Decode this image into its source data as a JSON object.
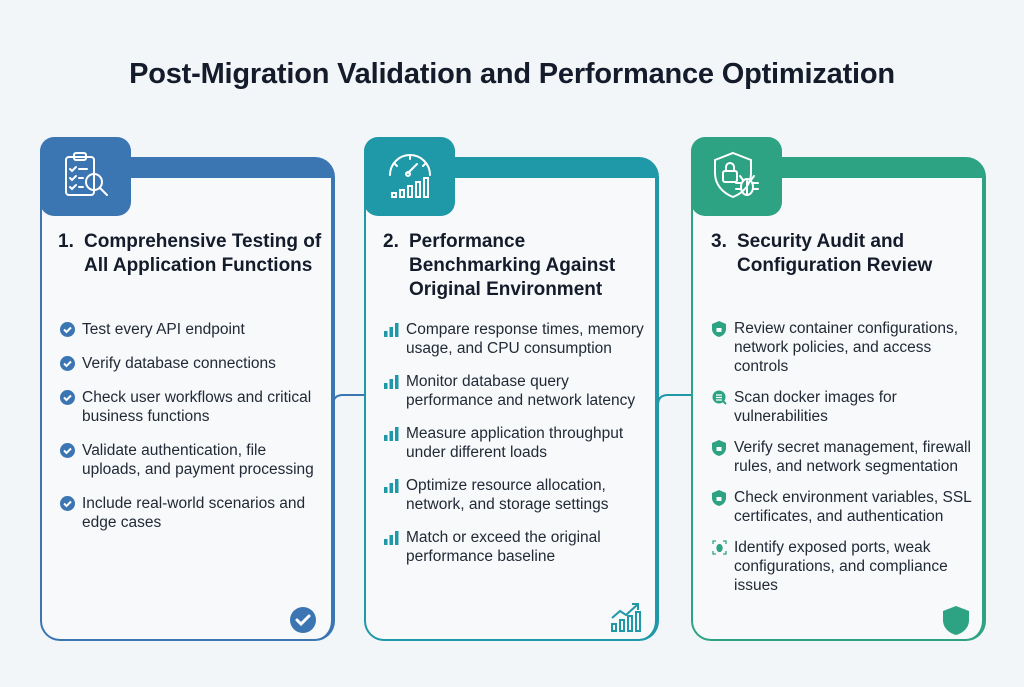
{
  "title": "Post-Migration Validation and Performance Optimization",
  "colors": {
    "step1": "#3b76b3",
    "step2": "#1f98a8",
    "step3": "#2ea383"
  },
  "steps": [
    {
      "number": "1.",
      "title": "Comprehensive Testing of All Application Functions",
      "icon": "clipboard-search-icon",
      "bullet_icon": "check-circle-icon",
      "corner_icon": "check-circle-icon",
      "items": [
        "Test every API endpoint",
        "Verify database connections",
        "Check user workflows and critical business functions",
        "Validate authentication, file uploads, and payment processing",
        "Include real-world scenarios and edge cases"
      ]
    },
    {
      "number": "2.",
      "title": "Performance Benchmarking Against Original Environment",
      "icon": "speedometer-icon",
      "bullet_icon": "bar-chart-icon",
      "corner_icon": "trend-up-chart-icon",
      "items": [
        "Compare response times, memory usage, and CPU consumption",
        "Monitor database query performance and network latency",
        "Measure application throughput under different loads",
        "Optimize resource allocation, network, and storage settings",
        "Match or exceed the original performance baseline"
      ]
    },
    {
      "number": "3.",
      "title": "Security Audit and Configuration Review",
      "icon": "shield-lock-bug-icon",
      "bullet_icon": "shield-lock-icon",
      "corner_icon": "shield-icon",
      "items": [
        "Review container configurations, network policies, and access controls",
        "Scan docker images for vulnerabilities",
        "Verify secret management, firewall rules, and network segmentation",
        "Check environment variables, SSL certificates, and authentication",
        "Identify exposed ports, weak configurations, and compliance issues"
      ]
    }
  ]
}
